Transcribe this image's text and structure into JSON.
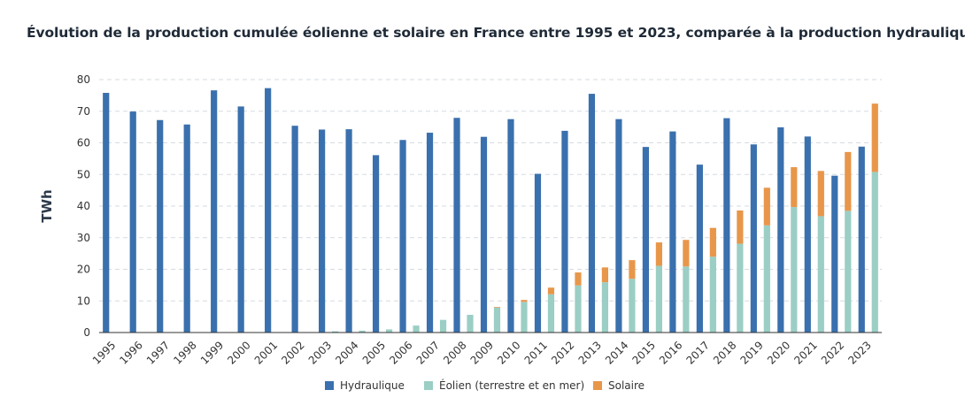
{
  "chart_data": {
    "type": "bar",
    "stacked_right": true,
    "title": "Évolution de la production cumulée éolienne et solaire en France entre 1995 et 2023, comparée à la production hydraulique",
    "ylabel": "TWh",
    "ylim": [
      0,
      80
    ],
    "yticks": [
      0,
      10,
      20,
      30,
      40,
      50,
      60,
      70,
      80
    ],
    "grid": true,
    "legend_position": "bottom-center",
    "categories": [
      "1995",
      "1996",
      "1997",
      "1998",
      "1999",
      "2000",
      "2001",
      "2002",
      "2003",
      "2004",
      "2005",
      "2006",
      "2007",
      "2008",
      "2009",
      "2010",
      "2011",
      "2012",
      "2013",
      "2014",
      "2015",
      "2016",
      "2017",
      "2018",
      "2019",
      "2020",
      "2021",
      "2022",
      "2023"
    ],
    "series": [
      {
        "name": "Hydraulique",
        "color": "#3a70ad",
        "values": [
          75.8,
          69.9,
          67.2,
          65.8,
          76.6,
          71.5,
          77.3,
          65.4,
          64.2,
          64.3,
          56.1,
          60.9,
          63.2,
          67.9,
          61.9,
          67.5,
          50.2,
          63.8,
          75.5,
          67.5,
          58.7,
          63.6,
          53.1,
          67.8,
          59.5,
          64.9,
          62.0,
          49.6,
          58.8
        ]
      },
      {
        "name": "Éolien (terrestre et en mer)",
        "color": "#9bcec4",
        "values": [
          0,
          0,
          0,
          0,
          0,
          0,
          0,
          0,
          0.4,
          0.6,
          1.0,
          2.2,
          4.0,
          5.6,
          7.9,
          9.7,
          12.1,
          14.9,
          15.9,
          17.0,
          21.1,
          20.9,
          24.0,
          28.1,
          33.9,
          39.7,
          36.8,
          38.5,
          50.8
        ]
      },
      {
        "name": "Solaire",
        "color": "#e8964a",
        "values": [
          0,
          0,
          0,
          0,
          0,
          0,
          0,
          0,
          0,
          0,
          0,
          0,
          0,
          0,
          0.2,
          0.6,
          2.1,
          4.1,
          4.7,
          5.9,
          7.4,
          8.4,
          9.1,
          10.5,
          11.9,
          12.6,
          14.3,
          18.6,
          21.6
        ]
      }
    ]
  }
}
